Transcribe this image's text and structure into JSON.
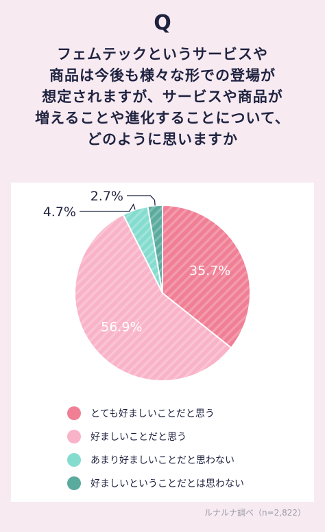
{
  "question_mark": "Q",
  "question_lines": [
    "フェムテックというサービスや",
    "商品は今後も様々な形での登場が",
    "想定されますが、サービスや商品が",
    "増えることや進化することについて、",
    "どのように思いますか"
  ],
  "source": "ルナルナ調べ（n=2,822）",
  "colors": {
    "background": "#f7eaf1",
    "card": "#ffffff",
    "text": "#1f2340"
  },
  "chart_data": {
    "type": "pie",
    "unit": "%",
    "start_angle": "12 o'clock, clockwise",
    "legend_position": "bottom",
    "slices": [
      {
        "label": "とても好ましいことだと思う",
        "value": 35.7,
        "display": "35.7%",
        "color": "#f07f95",
        "label_position": "inside"
      },
      {
        "label": "好ましいことだと思う",
        "value": 56.9,
        "display": "56.9%",
        "color": "#f9b3c8",
        "label_position": "inside"
      },
      {
        "label": "あまり好ましいことだと思わない",
        "value": 4.7,
        "display": "4.7%",
        "color": "#84dccf",
        "label_position": "outside-leader"
      },
      {
        "label": "好ましいということだとは思わない",
        "value": 2.7,
        "display": "2.7%",
        "color": "#5aaa9d",
        "label_position": "outside-leader"
      }
    ]
  }
}
